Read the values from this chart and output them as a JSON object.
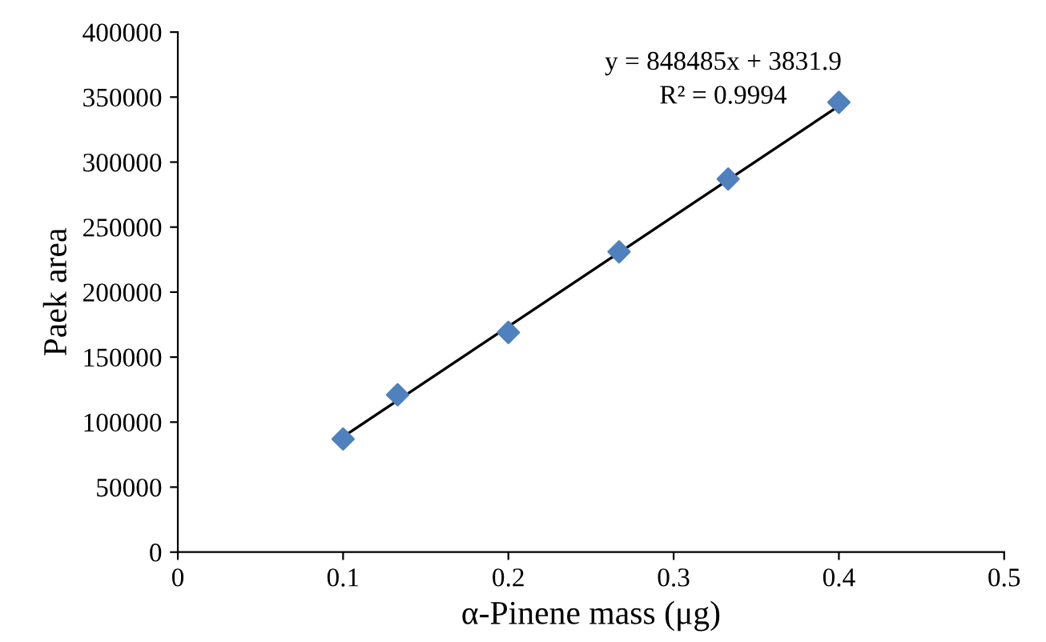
{
  "chart_data": {
    "type": "scatter",
    "xlabel": "α-Pinene mass (μg)",
    "ylabel": "Paek area",
    "x": [
      0.1,
      0.133,
      0.2,
      0.267,
      0.333,
      0.4
    ],
    "series": [
      {
        "type": "scatter",
        "color": "#4f81bd",
        "marker": "diamond",
        "values": [
          87000,
          121000,
          169000,
          231000,
          287000,
          346000
        ]
      },
      {
        "type": "line",
        "color": "#000000",
        "marker": "none",
        "x": [
          0.1,
          0.4
        ],
        "values": [
          88700,
          343200
        ]
      }
    ],
    "annotations": [
      "y = 848485x + 3831.9",
      "R² = 0.9994"
    ],
    "xlim": [
      0,
      0.5
    ],
    "xticks": [
      0,
      0.1,
      0.2,
      0.3,
      0.4,
      0.5
    ],
    "ylim": [
      0,
      400000
    ],
    "yticks": [
      0,
      50000,
      100000,
      150000,
      200000,
      250000,
      300000,
      350000,
      400000
    ],
    "grid": false,
    "legend": false
  }
}
